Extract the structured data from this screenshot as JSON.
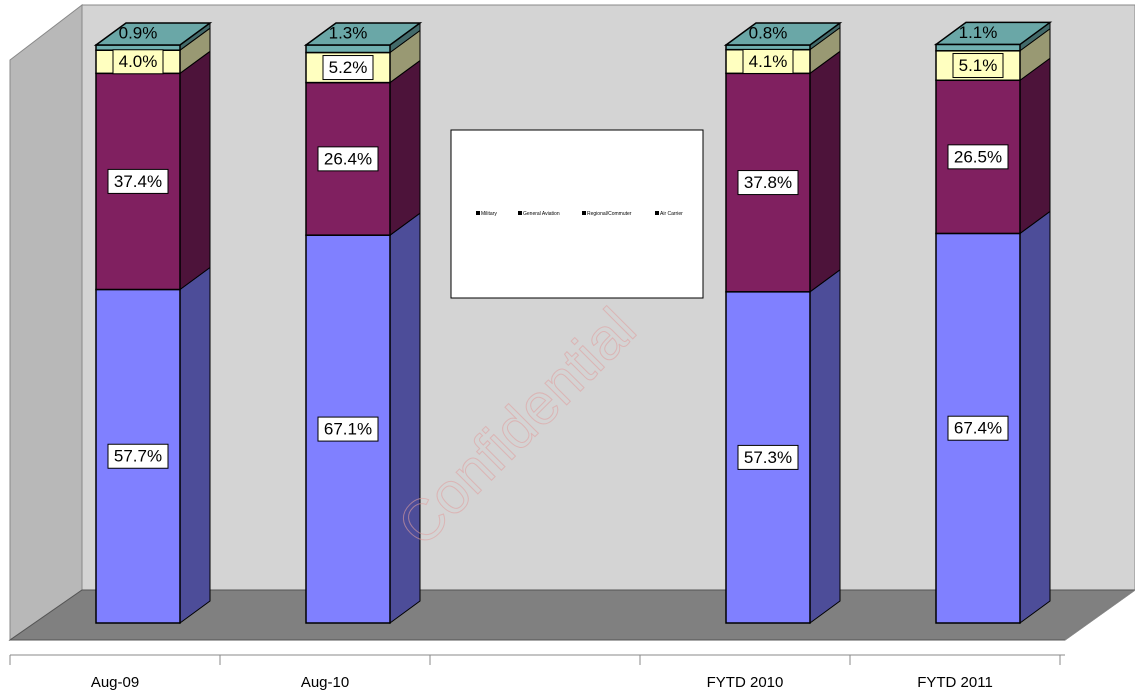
{
  "chart_data": {
    "type": "bar3d_stacked",
    "categories": [
      "Aug-09",
      "Aug-10",
      null,
      "FYTD 2010",
      "FYTD 2011"
    ],
    "ylim": [
      0,
      100
    ],
    "legend": "center",
    "series": [
      {
        "name": "Air Carrier",
        "color": "#8080ff",
        "values": [
          57.7,
          67.1,
          null,
          57.3,
          67.4
        ],
        "value_labels": [
          "57.7%",
          "67.1%",
          null,
          "57.3%",
          "67.4%"
        ]
      },
      {
        "name": "Regional/Commuter",
        "color": "#802060",
        "values": [
          37.4,
          26.4,
          null,
          37.8,
          26.5
        ],
        "value_labels": [
          "37.4%",
          "26.4%",
          null,
          "37.8%",
          "26.5%"
        ]
      },
      {
        "name": "General Aviation",
        "color": "#ffffc0",
        "values": [
          4.0,
          5.2,
          null,
          4.1,
          5.1
        ],
        "value_labels": [
          "4.0%",
          "5.2%",
          null,
          "4.1%",
          "5.1%"
        ]
      },
      {
        "name": "Military",
        "color": "#70b0b0",
        "values": [
          0.9,
          1.3,
          null,
          0.8,
          1.1
        ],
        "value_labels": [
          "0.9%",
          "1.3%",
          null,
          "0.8%",
          "1.1%"
        ]
      }
    ],
    "watermark": "Confidential"
  }
}
